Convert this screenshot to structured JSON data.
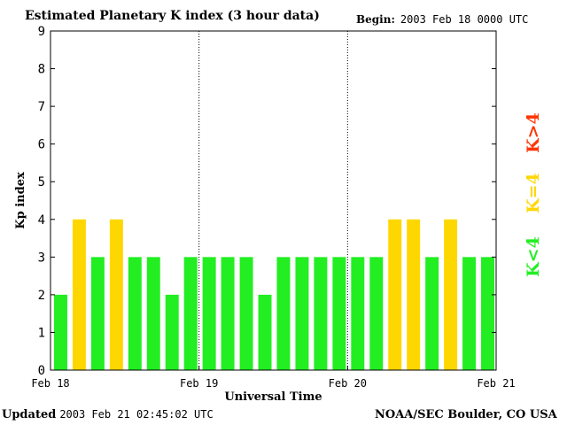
{
  "header": {
    "title": "Estimated Planetary K index (3 hour data)",
    "begin_label": "Begin:",
    "begin_value": "2003 Feb 18 0000 UTC"
  },
  "footer": {
    "updated_label": "Updated",
    "updated_value": "2003 Feb 21 02:45:02 UTC",
    "credit": "NOAA/SEC Boulder, CO USA"
  },
  "legend": {
    "items": [
      {
        "label": "K<4",
        "color": "#22ee22"
      },
      {
        "label": "K=4",
        "color": "#ffd700"
      },
      {
        "label": "K>4",
        "color": "#ff3300"
      }
    ]
  },
  "colors": {
    "below": "#22ee22",
    "equal": "#ffd700",
    "above": "#ff3300"
  },
  "chart_data": {
    "type": "bar",
    "title": "Estimated Planetary K index (3 hour data)",
    "xlabel": "Universal Time",
    "ylabel": "Kp index",
    "ylim": [
      0,
      9
    ],
    "yticks": [
      "0",
      "1",
      "2",
      "3",
      "4",
      "5",
      "6",
      "7",
      "8",
      "9"
    ],
    "xtick_labels": [
      "Feb 18",
      "Feb 19",
      "Feb 20",
      "Feb 21"
    ],
    "day_separators": true,
    "values": [
      2,
      4,
      3,
      4,
      3,
      3,
      2,
      3,
      3,
      3,
      3,
      2,
      3,
      3,
      3,
      3,
      3,
      3,
      4,
      4,
      3,
      4,
      3,
      3
    ]
  }
}
